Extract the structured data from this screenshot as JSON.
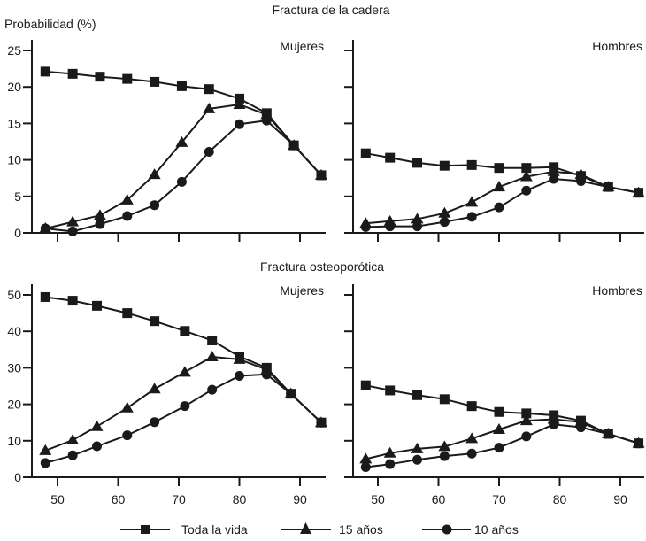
{
  "chart_data": [
    {
      "type": "line",
      "title": "Fractura de la cadera",
      "panel": "Mujeres",
      "ylabel": "Probabilidad (%)",
      "xlabel": "",
      "ylim": [
        0,
        25
      ],
      "yticks": [
        0,
        5,
        10,
        15,
        20,
        25
      ],
      "xlim": [
        46,
        95
      ],
      "xticks": [
        50,
        60,
        70,
        80,
        90
      ],
      "xtick_labels_shown": false,
      "grid": false,
      "series": [
        {
          "name": "Toda la vida",
          "marker": "square",
          "x": [
            48,
            52.5,
            57,
            61.5,
            66,
            70.5,
            75,
            80,
            84.5,
            89,
            93.5
          ],
          "y": [
            22.1,
            21.8,
            21.4,
            21.1,
            20.7,
            20.1,
            19.7,
            18.4,
            16.4,
            12.0,
            7.9
          ]
        },
        {
          "name": "15 años",
          "marker": "triangle",
          "x": [
            48,
            52.5,
            57,
            61.5,
            66,
            70.5,
            75,
            80,
            84.5,
            89,
            93.5
          ],
          "y": [
            0.6,
            1.5,
            2.4,
            4.5,
            8.0,
            12.4,
            17.0,
            17.6,
            16.2,
            12.0,
            7.9
          ]
        },
        {
          "name": "10 años",
          "marker": "circle",
          "x": [
            48,
            52.5,
            57,
            61.5,
            66,
            70.5,
            75,
            80,
            84.5,
            89,
            93.5
          ],
          "y": [
            0.6,
            0.2,
            1.2,
            2.3,
            3.8,
            7.0,
            11.1,
            14.9,
            15.4,
            12.0,
            7.9
          ]
        }
      ]
    },
    {
      "type": "line",
      "title": "Fractura de la cadera",
      "panel": "Hombres",
      "ylim": [
        0,
        25
      ],
      "yticks": [
        0,
        5,
        10,
        15,
        20,
        25
      ],
      "xlim": [
        46,
        95
      ],
      "xticks": [
        50,
        60,
        70,
        80,
        90
      ],
      "xtick_labels_shown": false,
      "grid": false,
      "series": [
        {
          "name": "Toda la vida",
          "marker": "square",
          "x": [
            48,
            52,
            56.5,
            61,
            65.5,
            70,
            74.5,
            79,
            83.5,
            88,
            93
          ],
          "y": [
            10.9,
            10.3,
            9.6,
            9.2,
            9.3,
            8.9,
            8.9,
            9.0,
            7.8,
            6.3,
            5.5
          ]
        },
        {
          "name": "15 años",
          "marker": "triangle",
          "x": [
            48,
            52,
            56.5,
            61,
            65.5,
            70,
            74.5,
            79,
            83.5,
            88,
            93
          ],
          "y": [
            1.3,
            1.6,
            1.9,
            2.7,
            4.2,
            6.3,
            7.7,
            8.4,
            8.0,
            6.3,
            5.5
          ]
        },
        {
          "name": "10 años",
          "marker": "circle",
          "x": [
            48,
            52,
            56.5,
            61,
            65.5,
            70,
            74.5,
            79,
            83.5,
            88,
            93
          ],
          "y": [
            0.8,
            0.9,
            0.9,
            1.5,
            2.2,
            3.5,
            5.8,
            7.4,
            7.1,
            6.3,
            5.5
          ]
        }
      ]
    },
    {
      "type": "line",
      "title": "Fractura osteoporótica",
      "panel": "Mujeres",
      "ylim": [
        0,
        50
      ],
      "yticks": [
        0,
        10,
        20,
        30,
        40,
        50
      ],
      "xlim": [
        46,
        95
      ],
      "xticks": [
        50,
        60,
        70,
        80,
        90
      ],
      "xtick_labels_shown": true,
      "grid": false,
      "series": [
        {
          "name": "Toda la vida",
          "marker": "square",
          "x": [
            48,
            52.5,
            56.5,
            61.5,
            66,
            71,
            75.5,
            80,
            84.5,
            88.5,
            93.5
          ],
          "y": [
            49.4,
            48.4,
            47.0,
            45.0,
            42.8,
            40.1,
            37.5,
            33.1,
            30.0,
            22.9,
            15.0
          ]
        },
        {
          "name": "15 años",
          "marker": "triangle",
          "x": [
            48,
            52.5,
            56.5,
            61.5,
            66,
            71,
            75.5,
            80,
            84.5,
            88.5,
            93.5
          ],
          "y": [
            7.3,
            10.2,
            13.9,
            19.0,
            24.2,
            28.8,
            33.0,
            32.3,
            29.5,
            22.9,
            15.0
          ]
        },
        {
          "name": "10 años",
          "marker": "circle",
          "x": [
            48,
            52.5,
            56.5,
            61.5,
            66,
            71,
            75.5,
            80,
            84.5,
            88.5,
            93.5
          ],
          "y": [
            3.9,
            6.0,
            8.5,
            11.5,
            15.1,
            19.5,
            24.0,
            27.8,
            28.2,
            22.9,
            15.0
          ]
        }
      ]
    },
    {
      "type": "line",
      "title": "Fractura osteoporótica",
      "panel": "Hombres",
      "ylim": [
        0,
        50
      ],
      "yticks": [
        0,
        10,
        20,
        30,
        40,
        50
      ],
      "xlim": [
        46,
        95
      ],
      "xticks": [
        50,
        60,
        70,
        80,
        90
      ],
      "xtick_labels_shown": true,
      "grid": false,
      "series": [
        {
          "name": "Toda la vida",
          "marker": "square",
          "x": [
            48,
            52,
            56.5,
            61,
            65.5,
            70,
            74.5,
            79,
            83.5,
            88,
            93
          ],
          "y": [
            25.2,
            23.8,
            22.5,
            21.4,
            19.5,
            17.9,
            17.5,
            17.0,
            15.5,
            11.9,
            9.3
          ]
        },
        {
          "name": "15 años",
          "marker": "triangle",
          "x": [
            48,
            52,
            56.5,
            61,
            65.5,
            70,
            74.5,
            79,
            83.5,
            88,
            93
          ],
          "y": [
            5.0,
            6.6,
            7.8,
            8.4,
            10.6,
            13.1,
            15.5,
            15.9,
            15.1,
            11.9,
            9.3
          ]
        },
        {
          "name": "10 años",
          "marker": "circle",
          "x": [
            48,
            52,
            56.5,
            61,
            65.5,
            70,
            74.5,
            79,
            83.5,
            88,
            93
          ],
          "y": [
            2.8,
            3.6,
            4.8,
            5.8,
            6.5,
            8.1,
            11.2,
            14.5,
            13.7,
            11.9,
            9.3
          ]
        }
      ]
    }
  ],
  "figure": {
    "ylabel": "Probabilidad (%)",
    "row_titles": [
      "Fractura de la cadera",
      "Fractura osteoporótica"
    ],
    "panel_labels": [
      "Mujeres",
      "Hombres",
      "Mujeres",
      "Hombres"
    ],
    "xtick_labels": [
      "50",
      "60",
      "70",
      "80",
      "90"
    ],
    "ytick_labels_top": [
      "0",
      "5",
      "10",
      "15",
      "20",
      "25"
    ],
    "ytick_labels_bottom": [
      "0",
      "10",
      "20",
      "30",
      "40",
      "50"
    ],
    "legend": {
      "placement": "bottom",
      "items": [
        {
          "label": "Toda la vida",
          "marker": "square"
        },
        {
          "label": "15 años",
          "marker": "triangle"
        },
        {
          "label": "10 años",
          "marker": "circle"
        }
      ]
    },
    "colors": {
      "ink": "#1a1a1a",
      "background": "#ffffff"
    }
  }
}
